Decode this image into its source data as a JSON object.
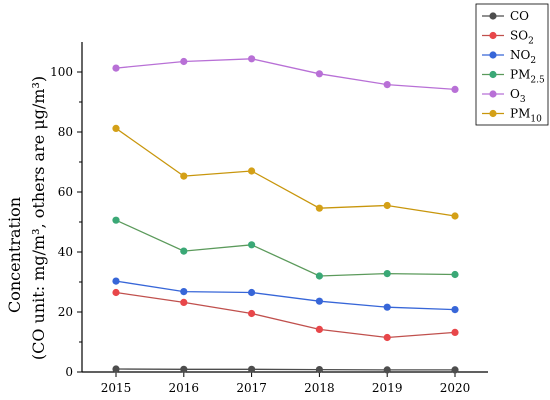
{
  "chart_data": {
    "type": "line",
    "title": "",
    "xlabel": "",
    "ylabel_line1": "Concentration",
    "ylabel_line2": "(CO unit: mg/m³, others are μg/m³)",
    "categories": [
      "2015",
      "2016",
      "2017",
      "2018",
      "2019",
      "2020"
    ],
    "ylim": [
      0,
      110
    ],
    "yticks": [
      0,
      20,
      40,
      60,
      80,
      100
    ],
    "grid": false,
    "legend_position": "top-right",
    "series": [
      {
        "name": "CO",
        "legend_base": "CO",
        "legend_sub": "",
        "color": "#4d4d4d",
        "values": [
          1.0,
          0.9,
          0.9,
          0.8,
          0.7,
          0.7
        ]
      },
      {
        "name": "SO2",
        "legend_base": "SO",
        "legend_sub": "2",
        "color": "#e8474a",
        "line_color": "#c0504d",
        "values": [
          26.5,
          23.2,
          19.5,
          14.2,
          11.5,
          13.2
        ]
      },
      {
        "name": "NO2",
        "legend_base": "NO",
        "legend_sub": "2",
        "color": "#3766d8",
        "values": [
          30.3,
          26.8,
          26.5,
          23.6,
          21.6,
          20.8
        ]
      },
      {
        "name": "PM2.5",
        "legend_base": "PM",
        "legend_sub": "2.5",
        "color": "#3aa876",
        "line_color": "#5b9a5b",
        "values": [
          50.6,
          40.3,
          42.4,
          32.0,
          32.8,
          32.5
        ]
      },
      {
        "name": "O3",
        "legend_base": "O",
        "legend_sub": "3",
        "color": "#b870d6",
        "values": [
          101.3,
          103.5,
          104.4,
          99.4,
          95.8,
          94.2
        ]
      },
      {
        "name": "PM10",
        "legend_base": "PM",
        "legend_sub": "10",
        "color": "#d4a017",
        "line_color": "#c8960c",
        "values": [
          81.2,
          65.3,
          67.0,
          54.6,
          55.5,
          52.0
        ]
      }
    ]
  }
}
